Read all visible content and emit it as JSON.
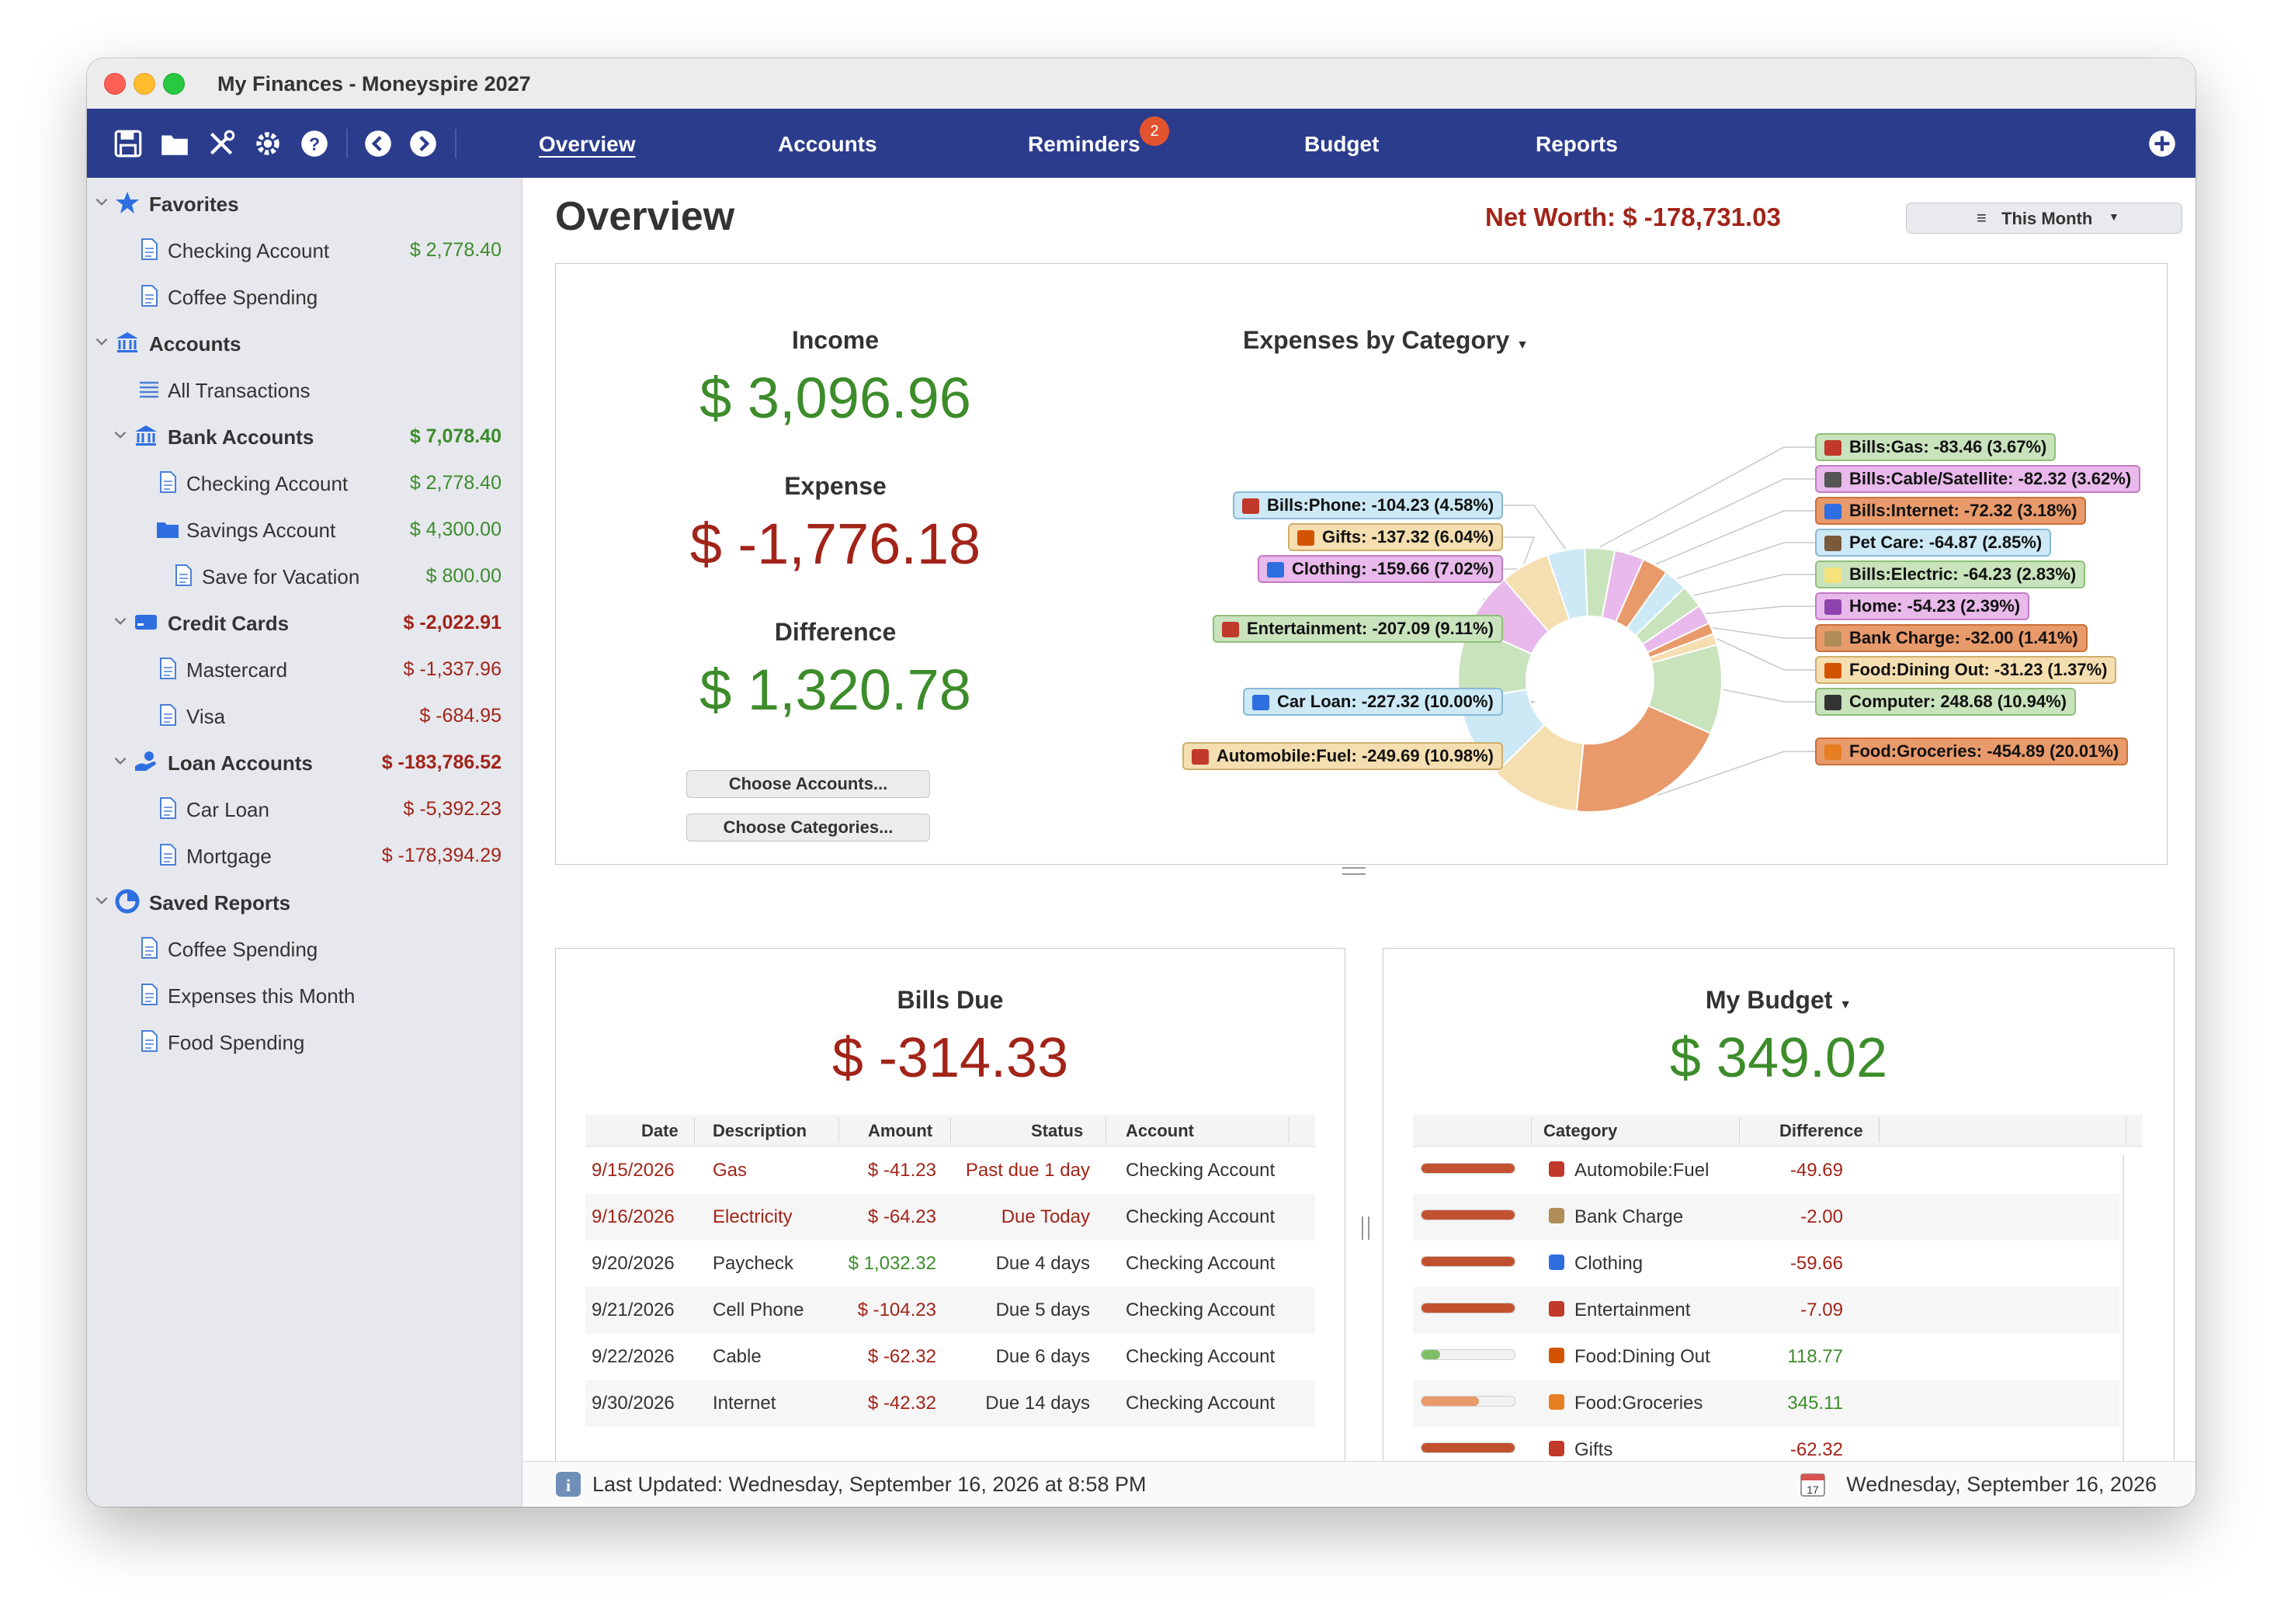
{
  "window": {
    "title": "My Finances - Moneyspire 2027"
  },
  "toolbar": {
    "tabs": [
      "Overview",
      "Accounts",
      "Reminders",
      "Budget",
      "Reports"
    ],
    "active_tab": "Overview",
    "reminders_badge": "2",
    "icons": [
      "save-icon",
      "folder-icon",
      "tools-icon",
      "gear-icon",
      "help-icon",
      "back-icon",
      "forward-icon",
      "add-icon"
    ]
  },
  "sidebar": {
    "favorites": {
      "label": "Favorites",
      "items": [
        {
          "label": "Checking Account",
          "amount": "$ 2,778.40"
        },
        {
          "label": "Coffee Spending",
          "amount": ""
        }
      ]
    },
    "accounts": {
      "label": "Accounts"
    },
    "all_transactions": "All Transactions",
    "bank": {
      "label": "Bank Accounts",
      "amount": "$ 7,078.40",
      "checking": {
        "label": "Checking Account",
        "amount": "$ 2,778.40"
      },
      "savings": {
        "label": "Savings Account",
        "amount": "$ 4,300.00"
      },
      "vacation": {
        "label": "Save for Vacation",
        "amount": "$ 800.00"
      }
    },
    "credit": {
      "label": "Credit Cards",
      "amount": "$ -2,022.91",
      "mastercard": {
        "label": "Mastercard",
        "amount": "$ -1,337.96"
      },
      "visa": {
        "label": "Visa",
        "amount": "$ -684.95"
      }
    },
    "loan": {
      "label": "Loan Accounts",
      "amount": "$ -183,786.52",
      "car": {
        "label": "Car Loan",
        "amount": "$ -5,392.23"
      },
      "mortgage": {
        "label": "Mortgage",
        "amount": "$ -178,394.29"
      }
    },
    "saved": {
      "label": "Saved Reports",
      "items": [
        "Coffee Spending",
        "Expenses this Month",
        "Food Spending"
      ]
    }
  },
  "overview": {
    "title": "Overview",
    "net_worth": "Net Worth: $ -178,731.03",
    "period": "This Month",
    "income_label": "Income",
    "income": "$ 3,096.96",
    "expense_label": "Expense",
    "expense": "$ -1,776.18",
    "difference_label": "Difference",
    "difference": "$ 1,320.78",
    "choose_accounts": "Choose Accounts...",
    "choose_categories": "Choose Categories...",
    "chart_title": "Expenses by Category"
  },
  "chart_data": {
    "type": "pie",
    "title": "Expenses by Category",
    "slices": [
      {
        "label": "Bills:Gas: -83.46 (3.67%)",
        "value": 83.46,
        "percent": 3.67,
        "color": "#c9e3bd"
      },
      {
        "label": "Bills:Cable/Satellite: -82.32 (3.62%)",
        "value": 82.32,
        "percent": 3.62,
        "color": "#e8b9ea"
      },
      {
        "label": "Bills:Internet: -72.32 (3.18%)",
        "value": 72.32,
        "percent": 3.18,
        "color": "#e89a6b"
      },
      {
        "label": "Pet Care: -64.87 (2.85%)",
        "value": 64.87,
        "percent": 2.85,
        "color": "#cde9f6"
      },
      {
        "label": "Bills:Electric: -64.23 (2.83%)",
        "value": 64.23,
        "percent": 2.83,
        "color": "#c9e3bd"
      },
      {
        "label": "Home: -54.23 (2.39%)",
        "value": 54.23,
        "percent": 2.39,
        "color": "#e8b9ea"
      },
      {
        "label": "Bank Charge: -32.00 (1.41%)",
        "value": 32.0,
        "percent": 1.41,
        "color": "#e89a6b"
      },
      {
        "label": "Food:Dining Out: -31.23 (1.37%)",
        "value": 31.23,
        "percent": 1.37,
        "color": "#f5deb0"
      },
      {
        "label": "Computer: 248.68 (10.94%)",
        "value": 248.68,
        "percent": 10.94,
        "color": "#c9e3bd"
      },
      {
        "label": "Food:Groceries: -454.89 (20.01%)",
        "value": 454.89,
        "percent": 20.01,
        "color": "#e89a6b"
      },
      {
        "label": "Automobile:Fuel: -249.69 (10.98%)",
        "value": 249.69,
        "percent": 10.98,
        "color": "#f5deb0"
      },
      {
        "label": "Car Loan: -227.32 (10.00%)",
        "value": 227.32,
        "percent": 10.0,
        "color": "#cde9f6"
      },
      {
        "label": "Entertainment: -207.09 (9.11%)",
        "value": 207.09,
        "percent": 9.11,
        "color": "#c9e3bd"
      },
      {
        "label": "Clothing: -159.66 (7.02%)",
        "value": 159.66,
        "percent": 7.02,
        "color": "#e8b9ea"
      },
      {
        "label": "Gifts: -137.32 (6.04%)",
        "value": 137.32,
        "percent": 6.04,
        "color": "#f5deb0"
      },
      {
        "label": "Bills:Phone: -104.23 (4.58%)",
        "value": 104.23,
        "percent": 4.58,
        "color": "#cde9f6"
      }
    ]
  },
  "legend_borders": {
    "green": "#8fbf7a",
    "pink": "#c27bc4",
    "orange": "#c9703b",
    "blue": "#8ab9d6",
    "tan": "#cfae6c"
  },
  "bills": {
    "title": "Bills Due",
    "total": "$ -314.33",
    "columns": [
      "Date",
      "Description",
      "Amount",
      "Status",
      "Account"
    ],
    "rows": [
      {
        "date": "9/15/2026",
        "description": "Gas",
        "amount": "$ -41.23",
        "status": "Past due 1 day",
        "account": "Checking Account"
      },
      {
        "date": "9/16/2026",
        "description": "Electricity",
        "amount": "$ -64.23",
        "status": "Due Today",
        "account": "Checking Account"
      },
      {
        "date": "9/20/2026",
        "description": "Paycheck",
        "amount": "$ 1,032.32",
        "status": "Due 4 days",
        "account": "Checking Account"
      },
      {
        "date": "9/21/2026",
        "description": "Cell Phone",
        "amount": "$ -104.23",
        "status": "Due 5 days",
        "account": "Checking Account"
      },
      {
        "date": "9/22/2026",
        "description": "Cable",
        "amount": "$ -62.32",
        "status": "Due 6 days",
        "account": "Checking Account"
      },
      {
        "date": "9/30/2026",
        "description": "Internet",
        "amount": "$ -42.32",
        "status": "Due 14 days",
        "account": "Checking Account"
      }
    ]
  },
  "budget": {
    "title": "My Budget",
    "total": "$ 349.02",
    "columns": [
      "Category",
      "Difference"
    ],
    "rows": [
      {
        "category": "Automobile:Fuel",
        "difference": "-49.69",
        "progress": 1.0
      },
      {
        "category": "Bank Charge",
        "difference": "-2.00",
        "progress": 1.0
      },
      {
        "category": "Clothing",
        "difference": "-59.66",
        "progress": 1.0
      },
      {
        "category": "Entertainment",
        "difference": "-7.09",
        "progress": 1.0
      },
      {
        "category": "Food:Dining Out",
        "difference": "118.77",
        "progress": 0.2
      },
      {
        "category": "Food:Groceries",
        "difference": "345.11",
        "progress": 0.62
      },
      {
        "category": "Gifts",
        "difference": "-62.32",
        "progress": 1.0
      }
    ]
  },
  "status": {
    "last_updated": "Last Updated: Wednesday, September 16, 2026 at 8:58 PM",
    "date": "Wednesday, September 16, 2026"
  }
}
